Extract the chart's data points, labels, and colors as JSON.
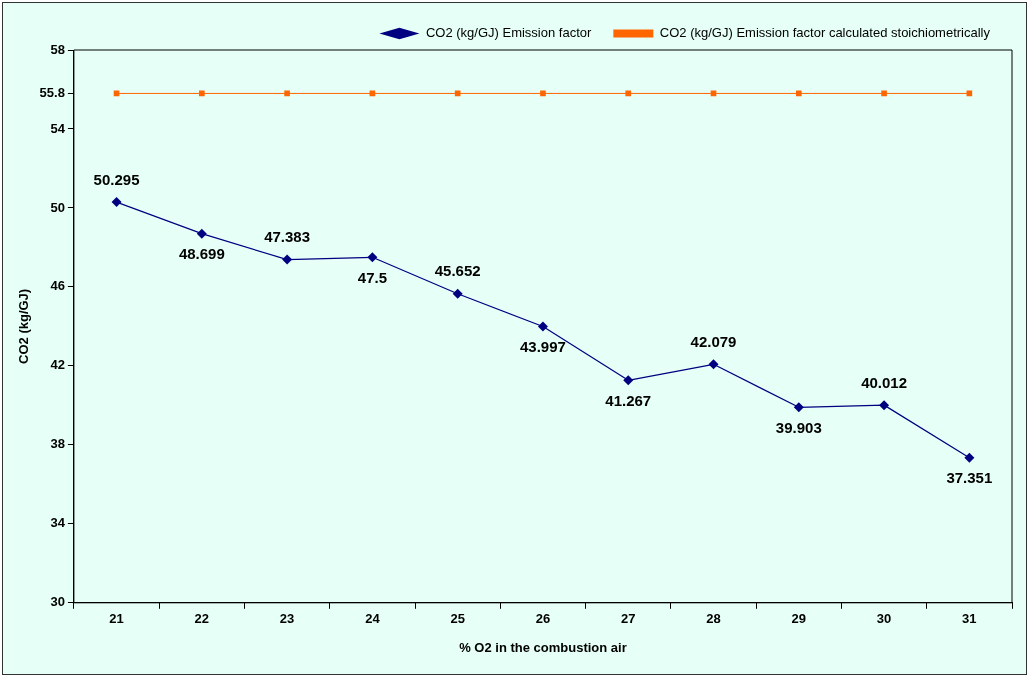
{
  "chart_data": {
    "type": "line",
    "xlabel": "% O2 in the combustion air",
    "ylabel": "CO2 (kg/GJ)",
    "categories": [
      "21",
      "22",
      "23",
      "24",
      "25",
      "26",
      "27",
      "28",
      "29",
      "30",
      "31"
    ],
    "series": [
      {
        "name": "CO2 (kg/GJ) Emission factor",
        "color": "#000080",
        "marker": "diamond",
        "values": [
          50.295,
          48.699,
          47.383,
          47.5,
          45.652,
          43.997,
          41.267,
          42.079,
          39.903,
          40.012,
          37.351
        ],
        "value_labels": [
          "50.295",
          "48.699",
          "47.383",
          "47.5",
          "45.652",
          "43.997",
          "41.267",
          "42.079",
          "39.903",
          "40.012",
          "37.351"
        ]
      },
      {
        "name": "CO2 (kg/GJ) Emission factor calculated stoichiometrically",
        "color": "#ff6600",
        "marker": "square",
        "values": [
          55.8,
          55.8,
          55.8,
          55.8,
          55.8,
          55.8,
          55.8,
          55.8,
          55.8,
          55.8,
          55.8
        ]
      }
    ],
    "ylim": [
      30,
      58
    ],
    "yticks": [
      30,
      34,
      38,
      42,
      46,
      50,
      54,
      55.8,
      58
    ],
    "grid": false,
    "legend": "top",
    "line_style": "solid"
  }
}
